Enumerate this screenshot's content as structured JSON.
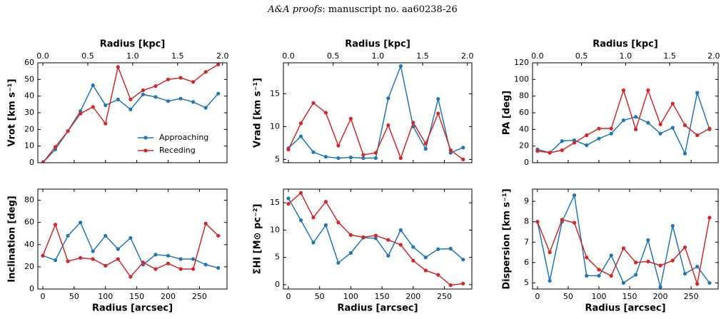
{
  "header": {
    "journal": "A&A proofs",
    "text": ": manuscript no. aa60238-26"
  },
  "chart_data": [
    {
      "type": "line",
      "ylabel": "Vrot [km s⁻¹]",
      "x2label": "Radius [kpc]",
      "x": [
        0,
        20,
        40,
        60,
        80,
        100,
        120,
        140,
        160,
        180,
        200,
        220,
        240,
        260,
        280
      ],
      "xlim": [
        -8,
        294
      ],
      "xticks": [
        0,
        50,
        100,
        150,
        200,
        250
      ],
      "show_xticklabels": false,
      "x2lim": [
        -0.056,
        2.05
      ],
      "x2ticks": [
        {
          "value": 0,
          "label": "0.0"
        },
        0.5,
        {
          "value": 1,
          "label": "1.0"
        },
        1.5,
        {
          "value": 2,
          "label": "2.0"
        }
      ],
      "ylim": [
        0,
        60
      ],
      "yticks": [
        0,
        10,
        20,
        30,
        40,
        50,
        60
      ],
      "legend": "lower right",
      "series": [
        {
          "name": "Approaching",
          "color": "#1f77b4",
          "values": [
            0,
            8,
            19,
            31,
            46.5,
            34.5,
            38,
            32,
            41,
            39.5,
            37,
            38.5,
            36.5,
            33,
            41.5
          ]
        },
        {
          "name": "Receding",
          "color": "#d62728",
          "values": [
            0,
            9.5,
            19,
            29.5,
            33.5,
            23.5,
            57.5,
            38,
            43.5,
            46,
            50,
            51,
            48.5,
            54.5,
            59
          ]
        }
      ]
    },
    {
      "type": "line",
      "ylabel": "Vrad [km s⁻¹]",
      "x2label": "Radius [kpc]",
      "x": [
        0,
        20,
        40,
        60,
        80,
        100,
        120,
        140,
        160,
        180,
        200,
        220,
        240,
        260,
        280
      ],
      "xlim": [
        -8,
        294
      ],
      "xticks": [
        0,
        50,
        100,
        150,
        200,
        250
      ],
      "show_xticklabels": false,
      "x2lim": [
        -0.056,
        2.05
      ],
      "x2ticks": [
        {
          "value": 0,
          "label": "0.0"
        },
        0.5,
        {
          "value": 1,
          "label": "1.0"
        },
        1.5,
        {
          "value": 2,
          "label": "2.0"
        }
      ],
      "ylim": [
        4.5,
        19.7
      ],
      "yticks": [
        5,
        10,
        15
      ],
      "series": [
        {
          "name": "Approaching",
          "color": "#1f77b4",
          "values": [
            6.7,
            8.5,
            6.1,
            5.4,
            5.2,
            5.3,
            5.2,
            5.2,
            14.3,
            19.2,
            10.0,
            6.6,
            14.2,
            6.0,
            6.8
          ]
        },
        {
          "name": "Receding",
          "color": "#d62728",
          "values": [
            6.5,
            10.5,
            13.6,
            12.1,
            7.1,
            11.2,
            5.7,
            6.0,
            10.2,
            5.2,
            10.6,
            7.4,
            12.0,
            6.4,
            5.0
          ]
        }
      ]
    },
    {
      "type": "line",
      "ylabel": "PA [deg]",
      "x2label": "Radius [kpc]",
      "x": [
        0,
        20,
        40,
        60,
        80,
        100,
        120,
        140,
        160,
        180,
        200,
        220,
        240,
        260,
        280
      ],
      "xlim": [
        -8,
        294
      ],
      "xticks": [
        0,
        50,
        100,
        150,
        200,
        250
      ],
      "show_xticklabels": false,
      "x2lim": [
        -0.056,
        2.05
      ],
      "x2ticks": [
        {
          "value": 0,
          "label": "0.0"
        },
        0.5,
        {
          "value": 1,
          "label": "1.0"
        },
        1.5,
        {
          "value": 2,
          "label": "2.0"
        }
      ],
      "ylim": [
        0,
        120
      ],
      "yticks": [
        0,
        20,
        40,
        60,
        80,
        100,
        120
      ],
      "series": [
        {
          "name": "Approaching",
          "color": "#1f77b4",
          "values": [
            16,
            12,
            26,
            27,
            21,
            29,
            35,
            51,
            55,
            48,
            35,
            42,
            11,
            84,
            40
          ]
        },
        {
          "name": "Receding",
          "color": "#d62728",
          "values": [
            14,
            12,
            15,
            24,
            33,
            41,
            41,
            87,
            40,
            87,
            46,
            71,
            45,
            33,
            41
          ]
        }
      ]
    },
    {
      "type": "line",
      "ylabel": "Inclination [deg]",
      "xlabel": "Radius [arcsec]",
      "x": [
        0,
        20,
        40,
        60,
        80,
        100,
        120,
        140,
        160,
        180,
        200,
        220,
        240,
        260,
        280
      ],
      "xlim": [
        -8,
        294
      ],
      "xticks": [
        0,
        50,
        100,
        150,
        200,
        250
      ],
      "show_xticklabels": true,
      "ylim": [
        0,
        90
      ],
      "yticks": [
        0,
        20,
        40,
        60,
        80
      ],
      "series": [
        {
          "name": "Approaching",
          "color": "#1f77b4",
          "values": [
            30,
            26,
            48,
            60,
            34,
            48,
            36,
            46,
            22,
            31,
            30,
            27,
            27,
            22,
            19
          ]
        },
        {
          "name": "Receding",
          "color": "#d62728",
          "values": [
            30,
            58,
            25,
            28,
            27,
            21,
            27,
            11,
            24,
            18,
            23,
            18,
            18,
            59,
            48
          ]
        }
      ]
    },
    {
      "type": "line",
      "ylabel": "ΣHI [M⊙ pc⁻²]",
      "xlabel": "Radius [arcsec]",
      "x": [
        0,
        20,
        40,
        60,
        80,
        100,
        120,
        140,
        160,
        180,
        200,
        220,
        240,
        260,
        280
      ],
      "xlim": [
        -8,
        294
      ],
      "xticks": [
        0,
        50,
        100,
        150,
        200,
        250
      ],
      "show_xticklabels": true,
      "ylim": [
        -0.8,
        17.5
      ],
      "yticks": [
        0,
        5,
        10,
        15
      ],
      "series": [
        {
          "name": "Approaching",
          "color": "#1f77b4",
          "values": [
            15.8,
            11.8,
            7.7,
            10.9,
            4.0,
            5.8,
            8.6,
            8.5,
            5.3,
            10.0,
            6.9,
            5.0,
            6.5,
            6.6,
            4.6
          ]
        },
        {
          "name": "Receding",
          "color": "#d62728",
          "values": [
            14.8,
            16.8,
            12.3,
            15.2,
            11.4,
            9.1,
            8.7,
            9.0,
            8.2,
            7.3,
            4.4,
            2.6,
            1.8,
            -0.1,
            0.2
          ]
        }
      ]
    },
    {
      "type": "line",
      "ylabel": "Dispersion [km s⁻¹]",
      "xlabel": "Radius [arcsec]",
      "x": [
        0,
        20,
        40,
        60,
        80,
        100,
        120,
        140,
        160,
        180,
        200,
        220,
        240,
        260,
        280
      ],
      "xlim": [
        -8,
        294
      ],
      "xticks": [
        0,
        50,
        100,
        150,
        200,
        250
      ],
      "show_xticklabels": true,
      "ylim": [
        4.7,
        9.6
      ],
      "yticks": [
        5,
        6,
        7,
        8,
        9
      ],
      "series": [
        {
          "name": "Approaching",
          "color": "#1f77b4",
          "values": [
            8.0,
            5.1,
            8.0,
            9.3,
            5.35,
            5.35,
            6.35,
            5.0,
            5.4,
            7.1,
            4.8,
            7.8,
            5.45,
            5.8,
            5.0
          ]
        },
        {
          "name": "Receding",
          "color": "#d62728",
          "values": [
            8.0,
            6.5,
            8.1,
            7.95,
            6.25,
            5.65,
            5.35,
            6.7,
            6.0,
            6.05,
            5.85,
            6.1,
            6.75,
            4.95,
            8.2
          ]
        }
      ]
    }
  ]
}
